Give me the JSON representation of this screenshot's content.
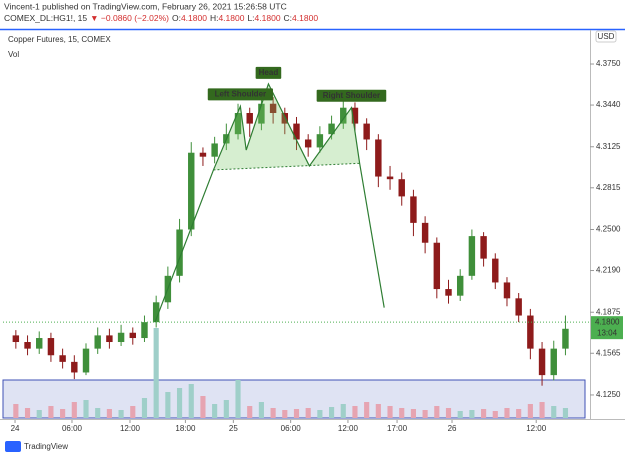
{
  "header": {
    "publisher": "Vincent-1 published on TradingView.com, February 26, 2021 15:26:58 UTC",
    "symbol": "COMEX_DL:HG1!, 15",
    "change": "▼ −0.0860 (−2.02%)",
    "o_label": "O:",
    "o": "4.1800",
    "h_label": "H:",
    "h": "4.1800",
    "l_label": "L:",
    "l": "4.1800",
    "c_label": "C:",
    "c": "4.1800"
  },
  "chart_data": {
    "type": "candlestick",
    "title": "Copper Futures, 15, COMEX",
    "volume_label": "Vol",
    "currency": "USD",
    "up_color": "#3f8f3a",
    "down_color": "#8e1b1b",
    "volume_up_color": "#9fcfc9",
    "volume_down_color": "#e6a4b1",
    "xlim": [
      -0.5,
      49.1
    ],
    "ylim": [
      4.1076,
      4.4007
    ],
    "vlim": [
      0,
      100
    ],
    "grid": false,
    "xticks": [
      {
        "value": -0.07,
        "label": "24"
      },
      {
        "value": 4.8,
        "label": "06:00"
      },
      {
        "value": 9.76,
        "label": "12:00"
      },
      {
        "value": 14.5,
        "label": "18:00"
      },
      {
        "value": 18.6,
        "label": "25"
      },
      {
        "value": 23.5,
        "label": "06:00"
      },
      {
        "value": 28.4,
        "label": "12:00"
      },
      {
        "value": 32.6,
        "label": "17:00"
      },
      {
        "value": 37.3,
        "label": "26"
      },
      {
        "value": 44.5,
        "label": "12:00"
      }
    ],
    "yticks": [
      {
        "value": 4.375,
        "label": "4.3750"
      },
      {
        "value": 4.344,
        "label": "4.3440"
      },
      {
        "value": 4.3125,
        "label": "4.3125"
      },
      {
        "value": 4.2815,
        "label": "4.2815"
      },
      {
        "value": 4.25,
        "label": "4.2500"
      },
      {
        "value": 4.219,
        "label": "4.2190"
      },
      {
        "value": 4.1875,
        "label": "4.1875"
      },
      {
        "value": 4.1565,
        "label": "4.1565"
      },
      {
        "value": 4.125,
        "label": "4.1250"
      }
    ],
    "open": [
      4.17,
      4.165,
      4.16,
      4.168,
      4.155,
      4.15,
      4.142,
      4.16,
      4.17,
      4.165,
      4.172,
      4.168,
      4.18,
      4.195,
      4.215,
      4.25,
      4.308,
      4.305,
      4.315,
      4.322,
      4.338,
      4.33,
      4.345,
      4.338,
      4.33,
      4.318,
      4.312,
      4.322,
      4.33,
      4.342,
      4.33,
      4.318,
      4.29,
      4.288,
      4.275,
      4.255,
      4.24,
      4.205,
      4.2,
      4.215,
      4.245,
      4.228,
      4.21,
      4.198,
      4.185,
      4.16,
      4.14,
      4.16
    ],
    "high": [
      4.174,
      4.17,
      4.173,
      4.172,
      4.16,
      4.155,
      4.164,
      4.176,
      4.175,
      4.178,
      4.176,
      4.185,
      4.2,
      4.222,
      4.258,
      4.316,
      4.312,
      4.32,
      4.33,
      4.345,
      4.342,
      4.352,
      4.35,
      4.342,
      4.335,
      4.322,
      4.328,
      4.336,
      4.348,
      4.346,
      4.334,
      4.322,
      4.298,
      4.293,
      4.28,
      4.26,
      4.244,
      4.212,
      4.22,
      4.25,
      4.248,
      4.232,
      4.214,
      4.202,
      4.19,
      4.165,
      4.166,
      4.185
    ],
    "low": [
      4.16,
      4.155,
      4.156,
      4.15,
      4.145,
      4.137,
      4.14,
      4.156,
      4.16,
      4.162,
      4.163,
      4.165,
      4.176,
      4.19,
      4.21,
      4.245,
      4.298,
      4.3,
      4.31,
      4.318,
      4.32,
      4.325,
      4.33,
      4.322,
      4.31,
      4.305,
      4.308,
      4.318,
      4.326,
      4.324,
      4.31,
      4.282,
      4.28,
      4.268,
      4.245,
      4.232,
      4.198,
      4.194,
      4.196,
      4.212,
      4.222,
      4.205,
      4.192,
      4.18,
      4.152,
      4.132,
      4.136,
      4.155
    ],
    "close": [
      4.165,
      4.16,
      4.168,
      4.155,
      4.15,
      4.142,
      4.16,
      4.17,
      4.165,
      4.172,
      4.168,
      4.18,
      4.195,
      4.215,
      4.25,
      4.308,
      4.305,
      4.315,
      4.322,
      4.338,
      4.33,
      4.345,
      4.338,
      4.33,
      4.318,
      4.312,
      4.322,
      4.33,
      4.342,
      4.33,
      4.318,
      4.29,
      4.288,
      4.275,
      4.255,
      4.24,
      4.205,
      4.2,
      4.215,
      4.245,
      4.228,
      4.21,
      4.198,
      4.185,
      4.16,
      4.14,
      4.16,
      4.175
    ],
    "volume": [
      14,
      10,
      8,
      12,
      9,
      16,
      18,
      10,
      9,
      8,
      12,
      20,
      90,
      26,
      30,
      34,
      22,
      14,
      18,
      38,
      12,
      16,
      10,
      8,
      9,
      10,
      8,
      11,
      14,
      12,
      16,
      14,
      12,
      10,
      9,
      8,
      12,
      10,
      7,
      8,
      9,
      7,
      10,
      9,
      14,
      16,
      12,
      10
    ],
    "pattern": {
      "labels": [
        "Left Shoulder",
        "Head",
        "Right Shoulder"
      ],
      "x": [
        11.9,
        16.9,
        19.2,
        19.7,
        21.6,
        25.1,
        28.7,
        29.4,
        31.5
      ],
      "y": [
        4.18,
        4.295,
        4.343,
        4.31,
        4.36,
        4.298,
        4.342,
        4.3,
        4.191
      ]
    },
    "last_price": {
      "value": 4.18,
      "label": "4.1800"
    },
    "countdown": "13:04"
  },
  "footer": {
    "brand": "TradingView"
  }
}
